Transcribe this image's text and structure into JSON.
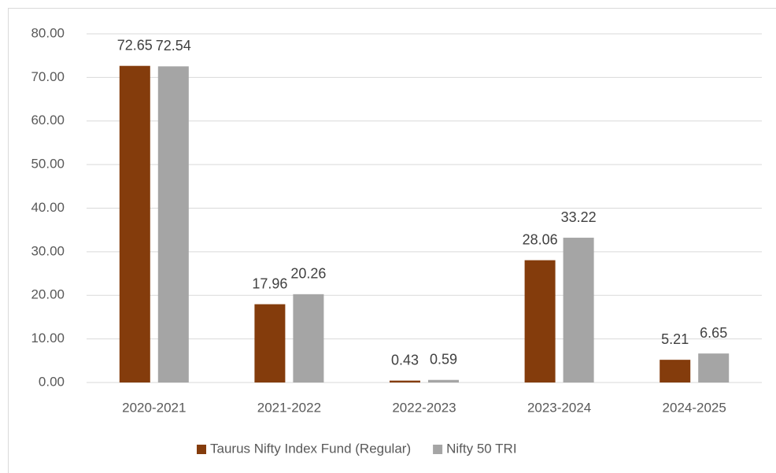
{
  "chart_data": {
    "type": "bar",
    "categories": [
      "2020-2021",
      "2021-2022",
      "2022-2023",
      "2023-2024",
      "2024-2025"
    ],
    "series": [
      {
        "name": "Taurus Nifty Index Fund (Regular)",
        "color": "#843c0c",
        "values": [
          72.65,
          17.96,
          0.43,
          28.06,
          5.21
        ]
      },
      {
        "name": "Nifty 50 TRI",
        "color": "#a5a5a5",
        "values": [
          72.54,
          20.26,
          0.59,
          33.22,
          6.65
        ]
      }
    ],
    "ylim": [
      0,
      80
    ],
    "yticks": [
      {
        "value": 0,
        "label": "0.00"
      },
      {
        "value": 10,
        "label": "10.00"
      },
      {
        "value": 20,
        "label": "20.00"
      },
      {
        "value": 30,
        "label": "30.00"
      },
      {
        "value": 40,
        "label": "40.00"
      },
      {
        "value": 50,
        "label": "50.00"
      },
      {
        "value": 60,
        "label": "60.00"
      },
      {
        "value": 70,
        "label": "70.00"
      },
      {
        "value": 80,
        "label": "80.00"
      }
    ],
    "grid": true,
    "legend": "bottom"
  }
}
